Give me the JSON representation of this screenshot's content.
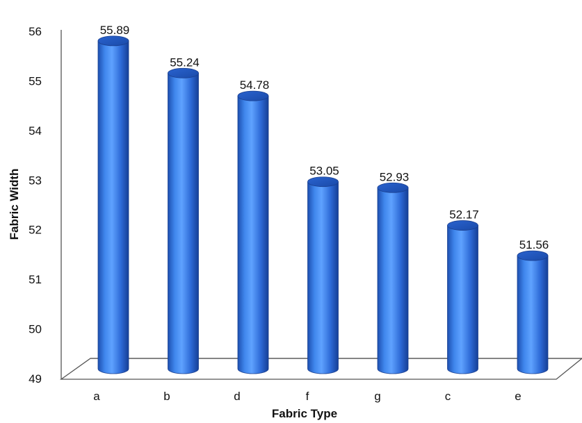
{
  "chart_data": {
    "type": "bar",
    "xlabel": "Fabric Type",
    "ylabel": "Fabric Width",
    "categories": [
      "a",
      "b",
      "d",
      "f",
      "g",
      "c",
      "e"
    ],
    "values": [
      55.89,
      55.24,
      54.78,
      53.05,
      52.93,
      52.17,
      51.56
    ],
    "value_labels": [
      "55.89",
      "55.24",
      "54.78",
      "53.05",
      "52.93",
      "52.17",
      "51.56"
    ],
    "y_ticks": [
      "49",
      "50",
      "51",
      "52",
      "53",
      "54",
      "55",
      "56"
    ],
    "ylim": [
      49,
      56
    ],
    "bar_style": "3d-cylinder",
    "bar_color": "#2f6fd6",
    "grid": false,
    "legend": "none"
  }
}
